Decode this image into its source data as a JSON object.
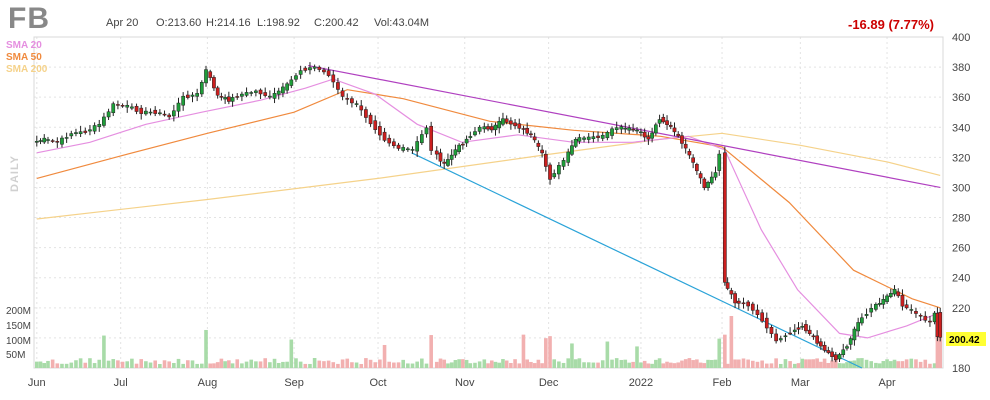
{
  "header": {
    "ticker": "FB",
    "date": "Apr 20",
    "open": "O:213.60",
    "high": "H:214.16",
    "low": "L:198.92",
    "close": "C:200.42",
    "volume": "Vol:43.04M",
    "change": "-16.89 (7.77%)",
    "interval": "DAILY"
  },
  "legend": [
    {
      "label": "SMA 20",
      "color": "#e58fe0"
    },
    {
      "label": "SMA 50",
      "color": "#f08a3e"
    },
    {
      "label": "SMA 200",
      "color": "#f5d28a"
    }
  ],
  "colors": {
    "up": "#1f9e3a",
    "down": "#cc1f1f",
    "trend_down": "#b040c0",
    "trend_low": "#2aa3d8",
    "last_price_bg": "#ffff33"
  },
  "last_price_label": "200.42",
  "chart_data": {
    "type": "candlestick",
    "x_ticks": [
      "Jun",
      "Jul",
      "Aug",
      "Sep",
      "Oct",
      "Nov",
      "Dec",
      "2022",
      "Feb",
      "Mar",
      "Apr"
    ],
    "y_ticks": [
      "400",
      "380",
      "360",
      "340",
      "320",
      "300",
      "280",
      "260",
      "240",
      "220",
      "200",
      "180"
    ],
    "ylim": [
      180,
      400
    ],
    "volume_ticks": [
      "200M",
      "150M",
      "100M",
      "50M"
    ],
    "close_series": [
      [
        "2021-06-01",
        330
      ],
      [
        "2021-06-05",
        332
      ],
      [
        "2021-06-10",
        330
      ],
      [
        "2021-06-15",
        336
      ],
      [
        "2021-06-20",
        337
      ],
      [
        "2021-06-25",
        342
      ],
      [
        "2021-06-30",
        355
      ],
      [
        "2021-07-05",
        354
      ],
      [
        "2021-07-10",
        350
      ],
      [
        "2021-07-15",
        350
      ],
      [
        "2021-07-20",
        347
      ],
      [
        "2021-07-25",
        360
      ],
      [
        "2021-07-30",
        362
      ],
      [
        "2021-08-02",
        378
      ],
      [
        "2021-08-06",
        361
      ],
      [
        "2021-08-10",
        358
      ],
      [
        "2021-08-15",
        362
      ],
      [
        "2021-08-20",
        364
      ],
      [
        "2021-08-25",
        360
      ],
      [
        "2021-08-31",
        368
      ],
      [
        "2021-09-05",
        378
      ],
      [
        "2021-09-10",
        380
      ],
      [
        "2021-09-15",
        375
      ],
      [
        "2021-09-20",
        360
      ],
      [
        "2021-09-25",
        355
      ],
      [
        "2021-09-30",
        343
      ],
      [
        "2021-10-05",
        332
      ],
      [
        "2021-10-10",
        326
      ],
      [
        "2021-10-15",
        325
      ],
      [
        "2021-10-20",
        340
      ],
      [
        "2021-10-22",
        325
      ],
      [
        "2021-10-26",
        315
      ],
      [
        "2021-10-30",
        325
      ],
      [
        "2021-11-03",
        332
      ],
      [
        "2021-11-08",
        340
      ],
      [
        "2021-11-12",
        339
      ],
      [
        "2021-11-16",
        345
      ],
      [
        "2021-11-22",
        340
      ],
      [
        "2021-11-26",
        335
      ],
      [
        "2021-11-30",
        322
      ],
      [
        "2021-12-03",
        306
      ],
      [
        "2021-12-08",
        318
      ],
      [
        "2021-12-12",
        332
      ],
      [
        "2021-12-17",
        333
      ],
      [
        "2021-12-22",
        334
      ],
      [
        "2021-12-27",
        340
      ],
      [
        "2022-01-03",
        338
      ],
      [
        "2022-01-07",
        332
      ],
      [
        "2022-01-11",
        346
      ],
      [
        "2022-01-15",
        340
      ],
      [
        "2022-01-19",
        330
      ],
      [
        "2022-01-23",
        316
      ],
      [
        "2022-01-27",
        300
      ],
      [
        "2022-01-31",
        310
      ],
      [
        "2022-02-02",
        323
      ],
      [
        "2022-02-03",
        237
      ],
      [
        "2022-02-07",
        224
      ],
      [
        "2022-02-12",
        222
      ],
      [
        "2022-02-17",
        212
      ],
      [
        "2022-02-22",
        198
      ],
      [
        "2022-02-27",
        204
      ],
      [
        "2022-03-03",
        208
      ],
      [
        "2022-03-07",
        200
      ],
      [
        "2022-03-11",
        192
      ],
      [
        "2022-03-15",
        186
      ],
      [
        "2022-03-19",
        195
      ],
      [
        "2022-03-23",
        210
      ],
      [
        "2022-03-28",
        220
      ],
      [
        "2022-04-01",
        225
      ],
      [
        "2022-04-05",
        232
      ],
      [
        "2022-04-08",
        222
      ],
      [
        "2022-04-13",
        216
      ],
      [
        "2022-04-18",
        210
      ],
      [
        "2022-04-19",
        217
      ],
      [
        "2022-04-20",
        200.42
      ]
    ],
    "sma20": [
      [
        "2021-06-01",
        323
      ],
      [
        "2021-06-20",
        330
      ],
      [
        "2021-07-10",
        342
      ],
      [
        "2021-07-30",
        350
      ],
      [
        "2021-08-20",
        358
      ],
      [
        "2021-09-05",
        366
      ],
      [
        "2021-09-15",
        372
      ],
      [
        "2021-09-30",
        362
      ],
      [
        "2021-10-15",
        342
      ],
      [
        "2021-10-31",
        330
      ],
      [
        "2021-11-20",
        335
      ],
      [
        "2021-12-10",
        330
      ],
      [
        "2021-12-31",
        330
      ],
      [
        "2022-01-20",
        334
      ],
      [
        "2022-02-02",
        325
      ],
      [
        "2022-02-15",
        272
      ],
      [
        "2022-02-28",
        232
      ],
      [
        "2022-03-15",
        203
      ],
      [
        "2022-03-25",
        200
      ],
      [
        "2022-04-08",
        208
      ],
      [
        "2022-04-20",
        217
      ]
    ],
    "sma50": [
      [
        "2021-06-01",
        306
      ],
      [
        "2021-07-01",
        321
      ],
      [
        "2021-08-01",
        336
      ],
      [
        "2021-09-01",
        350
      ],
      [
        "2021-09-20",
        365
      ],
      [
        "2021-10-10",
        359
      ],
      [
        "2021-11-10",
        344
      ],
      [
        "2021-12-10",
        338
      ],
      [
        "2022-01-10",
        334
      ],
      [
        "2022-02-01",
        327
      ],
      [
        "2022-02-25",
        290
      ],
      [
        "2022-03-20",
        245
      ],
      [
        "2022-04-10",
        226
      ],
      [
        "2022-04-20",
        220
      ]
    ],
    "sma200": [
      [
        "2021-06-01",
        279
      ],
      [
        "2021-08-01",
        292
      ],
      [
        "2021-10-01",
        306
      ],
      [
        "2021-12-01",
        322
      ],
      [
        "2022-01-10",
        332
      ],
      [
        "2022-02-01",
        336
      ],
      [
        "2022-03-01",
        328
      ],
      [
        "2022-04-01",
        317
      ],
      [
        "2022-04-20",
        308
      ]
    ],
    "trendline_upper": [
      [
        "2021-09-06",
        381
      ],
      [
        "2022-04-20",
        300
      ]
    ],
    "trendline_lower": [
      [
        "2021-10-13",
        323
      ],
      [
        "2022-03-23",
        180
      ]
    ],
    "grid": true
  }
}
